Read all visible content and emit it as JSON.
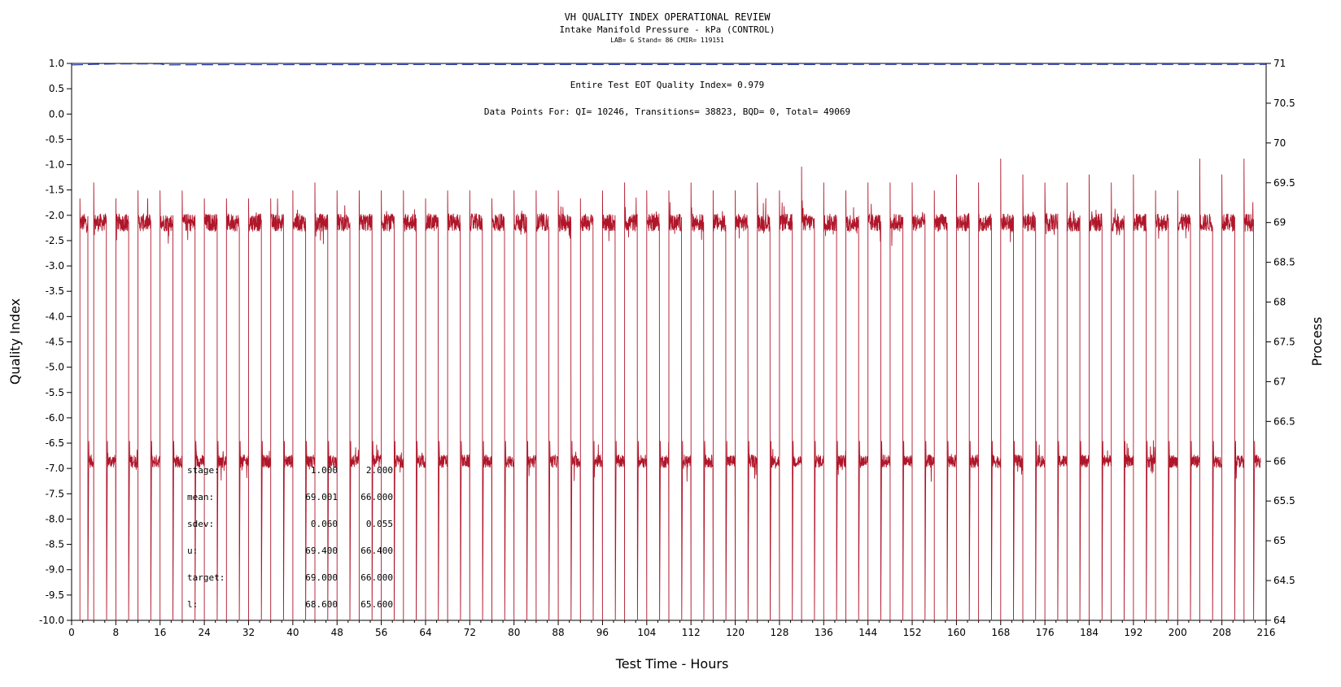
{
  "chart_data": {
    "type": "line",
    "title": "VH QUALITY INDEX OPERATIONAL REVIEW",
    "subtitle": "Intake Manifold Pressure - kPa (CONTROL)",
    "subtitle2": "LAB= G Stand= 86 CMIR= 119151",
    "annotation1": "Entire Test EOT Quality Index=  0.979",
    "annotation2": "Data Points For: QI= 10246, Transitions= 38823, BQD=    0, Total= 49069",
    "xlabel": "Test Time - Hours",
    "ylabel_left": "Quality Index",
    "ylabel_right": "Process",
    "xlim": [
      0,
      216
    ],
    "ylim_left": [
      -10,
      1
    ],
    "ylim_right": [
      64,
      71
    ],
    "x_ticks": [
      "0",
      "8",
      "16",
      "24",
      "32",
      "40",
      "48",
      "56",
      "64",
      "72",
      "80",
      "88",
      "96",
      "104",
      "112",
      "120",
      "128",
      "136",
      "144",
      "152",
      "160",
      "168",
      "176",
      "184",
      "192",
      "200",
      "208",
      "216"
    ],
    "y_left_ticks": [
      "1.0",
      "0.5",
      "0.0",
      "-0.5",
      "-1.0",
      "-1.5",
      "-2.0",
      "-2.5",
      "-3.0",
      "-3.5",
      "-4.0",
      "-4.5",
      "-5.0",
      "-5.5",
      "-6.0",
      "-6.5",
      "-7.0",
      "-7.5",
      "-8.0",
      "-8.5",
      "-9.0",
      "-9.5",
      "-10.0"
    ],
    "y_right_ticks": [
      "71",
      "70.5",
      "70",
      "69.5",
      "69",
      "68.5",
      "68",
      "67.5",
      "67",
      "66.5",
      "66",
      "65.5",
      "65",
      "64.5",
      "64"
    ],
    "series": [
      {
        "axis": "left",
        "color": "#2b3fb8",
        "style": "dashed",
        "x": [
          0,
          4,
          8,
          12,
          16,
          17,
          24,
          48,
          72,
          96,
          120,
          144,
          168,
          192,
          216
        ],
        "y": [
          0.97,
          0.98,
          0.99,
          0.99,
          0.99,
          0.97,
          0.975,
          0.976,
          0.977,
          0.978,
          0.978,
          0.979,
          0.979,
          0.979,
          0.979
        ]
      },
      {
        "axis": "right",
        "color": "#b0162a",
        "style": "solid",
        "description_levels": {
          "high": 69.0,
          "low": 66.0
        },
        "cycle_hours": 4,
        "high_spike_hours": [
          1.5,
          4,
          8,
          12,
          16,
          20,
          24,
          28,
          32,
          36,
          40,
          44,
          48,
          52,
          56,
          60,
          64,
          68,
          72,
          76,
          80,
          84,
          88,
          92,
          96,
          100,
          104,
          108,
          112,
          116,
          120,
          124,
          128,
          132,
          136,
          140,
          144,
          148,
          152,
          156,
          160,
          164,
          168,
          172,
          176,
          180,
          184,
          188,
          192,
          196,
          200,
          204,
          208,
          212
        ],
        "high_spike_values": [
          69.3,
          69.5,
          69.3,
          69.4,
          69.4,
          69.4,
          69.3,
          69.3,
          69.3,
          69.3,
          69.4,
          69.5,
          69.4,
          69.4,
          69.4,
          69.4,
          69.3,
          69.4,
          69.4,
          69.3,
          69.4,
          69.4,
          69.4,
          69.3,
          69.4,
          69.5,
          69.4,
          69.4,
          69.5,
          69.4,
          69.4,
          69.5,
          69.4,
          69.7,
          69.5,
          69.4,
          69.5,
          69.5,
          69.5,
          69.4,
          69.6,
          69.5,
          69.8,
          69.6,
          69.5,
          69.5,
          69.6,
          69.5,
          69.6,
          69.4,
          69.4,
          69.8,
          69.6,
          69.8
        ]
      }
    ],
    "stats_table": {
      "rows": [
        {
          "label": "stage:",
          "v1": "1.000",
          "v2": "2.000"
        },
        {
          "label": "mean:",
          "v1": "69.001",
          "v2": "66.000"
        },
        {
          "label": "sdev:",
          "v1": "0.060",
          "v2": "0.055"
        },
        {
          "label": "u:",
          "v1": "69.400",
          "v2": "66.400"
        },
        {
          "label": "target:",
          "v1": "69.000",
          "v2": "66.000"
        },
        {
          "label": "l:",
          "v1": "68.600",
          "v2": "65.600"
        }
      ]
    }
  }
}
